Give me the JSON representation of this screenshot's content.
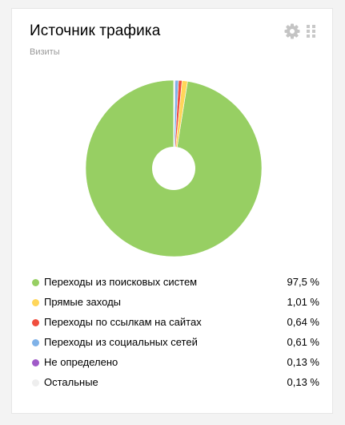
{
  "widget": {
    "title": "Источник трафика",
    "subtitle": "Визиты",
    "settings_icon": "gear-icon",
    "drag_icon": "drag-handle-icon"
  },
  "chart_data": {
    "type": "pie",
    "donut": true,
    "legend_position": "bottom",
    "slices": [
      {
        "label": "Переходы из поисковых систем",
        "value": 97.5,
        "display": "97,5 %",
        "color": "#97cf63"
      },
      {
        "label": "Прямые заходы",
        "value": 1.01,
        "display": "1,01 %",
        "color": "#ffd65a"
      },
      {
        "label": "Переходы по ссылкам на сайтах",
        "value": 0.64,
        "display": "0,64 %",
        "color": "#f04e3e"
      },
      {
        "label": "Переходы из социальных сетей",
        "value": 0.61,
        "display": "0,61 %",
        "color": "#7fb2e8"
      },
      {
        "label": "Не определено",
        "value": 0.13,
        "display": "0,13 %",
        "color": "#a05ac8"
      },
      {
        "label": "Остальные",
        "value": 0.13,
        "display": "0,13 %",
        "color": "#eeeeee"
      }
    ]
  }
}
